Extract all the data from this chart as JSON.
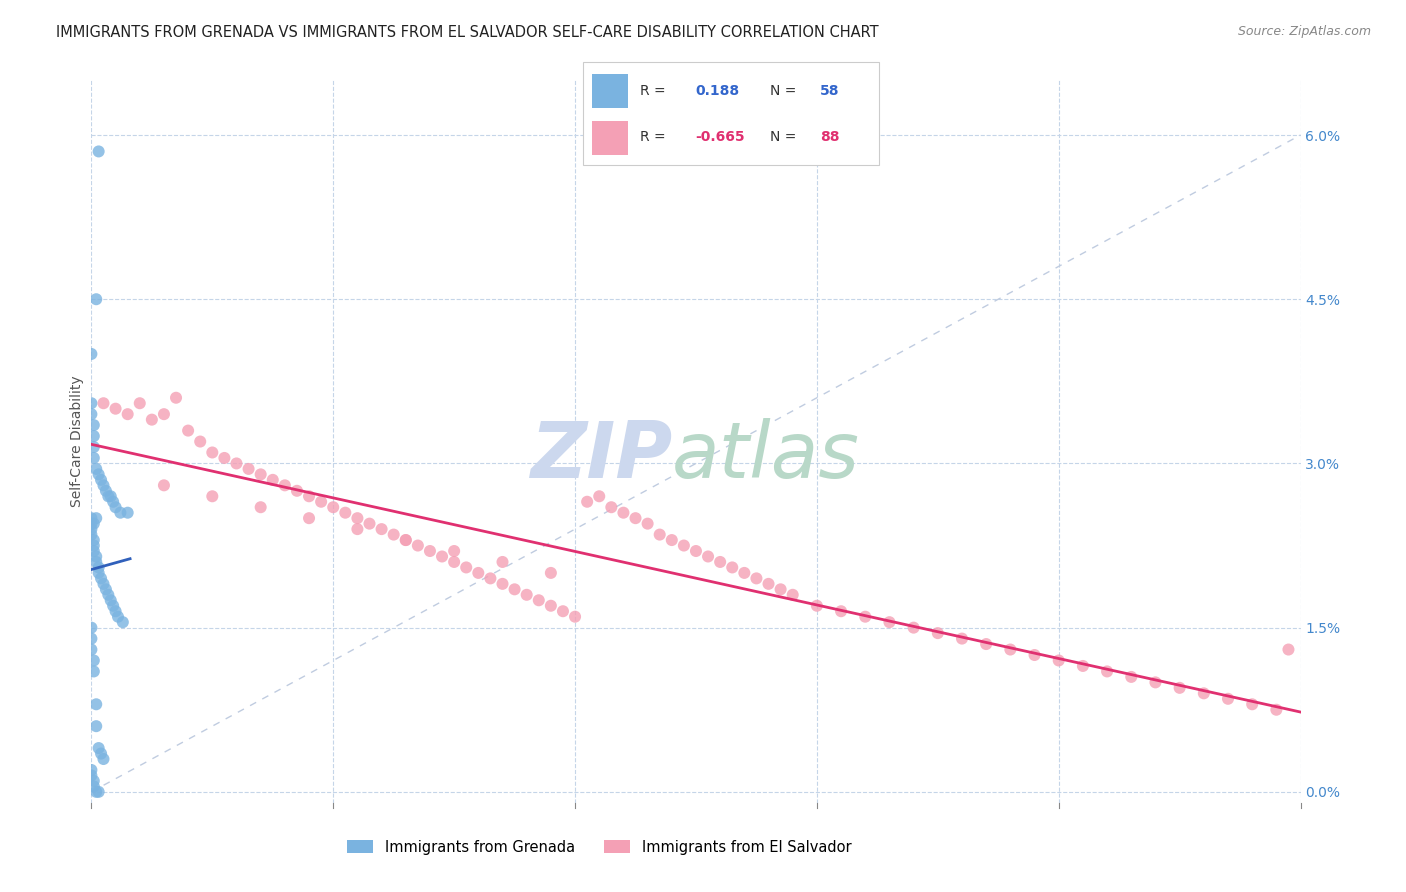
{
  "title": "IMMIGRANTS FROM GRENADA VS IMMIGRANTS FROM EL SALVADOR SELF-CARE DISABILITY CORRELATION CHART",
  "source": "Source: ZipAtlas.com",
  "ylabel": "Self-Care Disability",
  "right_yticks": [
    "0.0%",
    "1.5%",
    "3.0%",
    "4.5%",
    "6.0%"
  ],
  "right_ytick_vals": [
    0.0,
    1.5,
    3.0,
    4.5,
    6.0
  ],
  "xlim": [
    0.0,
    50.0
  ],
  "ylim": [
    -0.1,
    6.5
  ],
  "legend_blue_r_val": "0.188",
  "legend_blue_n_val": "58",
  "legend_pink_r_val": "-0.665",
  "legend_pink_n_val": "88",
  "blue_scatter_x": [
    0.3,
    0.2,
    0.0,
    0.0,
    0.0,
    0.1,
    0.1,
    0.1,
    0.1,
    0.2,
    0.3,
    0.4,
    0.5,
    0.6,
    0.7,
    0.8,
    0.9,
    1.0,
    1.2,
    1.5,
    0.0,
    0.0,
    0.0,
    0.0,
    0.1,
    0.1,
    0.1,
    0.2,
    0.2,
    0.3,
    0.3,
    0.4,
    0.5,
    0.6,
    0.7,
    0.8,
    0.9,
    1.0,
    1.1,
    1.3,
    0.0,
    0.0,
    0.0,
    0.1,
    0.1,
    0.2,
    0.2,
    0.3,
    0.4,
    0.5,
    0.0,
    0.0,
    0.1,
    0.1,
    0.2,
    0.3,
    0.1,
    0.2
  ],
  "blue_scatter_y": [
    5.85,
    4.5,
    4.0,
    3.55,
    3.45,
    3.35,
    3.25,
    3.15,
    3.05,
    2.95,
    2.9,
    2.85,
    2.8,
    2.75,
    2.7,
    2.7,
    2.65,
    2.6,
    2.55,
    2.55,
    2.5,
    2.45,
    2.4,
    2.35,
    2.3,
    2.25,
    2.2,
    2.15,
    2.1,
    2.05,
    2.0,
    1.95,
    1.9,
    1.85,
    1.8,
    1.75,
    1.7,
    1.65,
    1.6,
    1.55,
    1.5,
    1.4,
    1.3,
    1.2,
    1.1,
    0.8,
    0.6,
    0.4,
    0.35,
    0.3,
    0.2,
    0.15,
    0.1,
    0.05,
    0.0,
    0.0,
    2.45,
    2.5
  ],
  "pink_scatter_x": [
    0.5,
    1.0,
    1.5,
    2.0,
    2.5,
    3.0,
    3.5,
    4.0,
    4.5,
    5.0,
    5.5,
    6.0,
    6.5,
    7.0,
    7.5,
    8.0,
    8.5,
    9.0,
    9.5,
    10.0,
    10.5,
    11.0,
    11.5,
    12.0,
    12.5,
    13.0,
    13.5,
    14.0,
    14.5,
    15.0,
    15.5,
    16.0,
    16.5,
    17.0,
    17.5,
    18.0,
    18.5,
    19.0,
    19.5,
    20.0,
    20.5,
    21.0,
    21.5,
    22.0,
    22.5,
    23.0,
    23.5,
    24.0,
    24.5,
    25.0,
    25.5,
    26.0,
    26.5,
    27.0,
    27.5,
    28.0,
    28.5,
    29.0,
    30.0,
    31.0,
    32.0,
    33.0,
    34.0,
    35.0,
    36.0,
    37.0,
    38.0,
    39.0,
    40.0,
    41.0,
    42.0,
    43.0,
    44.0,
    45.0,
    46.0,
    47.0,
    48.0,
    49.0,
    49.5,
    3.0,
    5.0,
    7.0,
    9.0,
    11.0,
    13.0,
    15.0,
    17.0,
    19.0
  ],
  "pink_scatter_y": [
    3.55,
    3.5,
    3.45,
    3.55,
    3.4,
    3.45,
    3.6,
    3.3,
    3.2,
    3.1,
    3.05,
    3.0,
    2.95,
    2.9,
    2.85,
    2.8,
    2.75,
    2.7,
    2.65,
    2.6,
    2.55,
    2.5,
    2.45,
    2.4,
    2.35,
    2.3,
    2.25,
    2.2,
    2.15,
    2.1,
    2.05,
    2.0,
    1.95,
    1.9,
    1.85,
    1.8,
    1.75,
    1.7,
    1.65,
    1.6,
    2.65,
    2.7,
    2.6,
    2.55,
    2.5,
    2.45,
    2.35,
    2.3,
    2.25,
    2.2,
    2.15,
    2.1,
    2.05,
    2.0,
    1.95,
    1.9,
    1.85,
    1.8,
    1.7,
    1.65,
    1.6,
    1.55,
    1.5,
    1.45,
    1.4,
    1.35,
    1.3,
    1.25,
    1.2,
    1.15,
    1.1,
    1.05,
    1.0,
    0.95,
    0.9,
    0.85,
    0.8,
    0.75,
    1.3,
    2.8,
    2.7,
    2.6,
    2.5,
    2.4,
    2.3,
    2.2,
    2.1,
    2.0
  ],
  "blue_color": "#7ab3e0",
  "blue_line_color": "#3060bb",
  "pink_color": "#f4a0b5",
  "pink_line_color": "#e03070",
  "diagonal_color": "#c0cce0",
  "background_color": "#ffffff"
}
